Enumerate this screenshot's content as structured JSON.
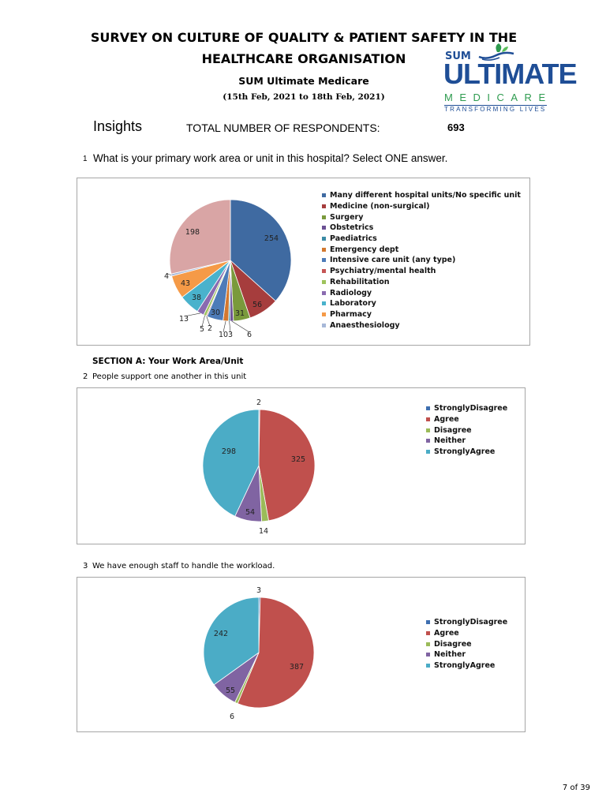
{
  "header": {
    "title_line1": "SURVEY ON CULTURE OF QUALITY & PATIENT SAFETY IN THE",
    "title_line2": "HEALTHCARE ORGANISATION",
    "subtitle": "SUM Ultimate Medicare",
    "dates": "(15th Feb, 2021 to 18th Feb, 2021)"
  },
  "logo": {
    "sum": "SUM",
    "ultimate": "ULTIMATE",
    "medicare": "MEDICARE",
    "tagline": "TRANSFORMING LIVES",
    "colors": {
      "blue": "#1f4e96",
      "green": "#2e9b4f"
    }
  },
  "insights": {
    "label": "Insights",
    "respondents_label": "TOTAL NUMBER OF RESPONDENTS:",
    "respondents_count": "693"
  },
  "q1": {
    "number": "1",
    "text": "What is your primary work area or unit in this hospital? Select ONE answer."
  },
  "section_a": "SECTION A: Your Work Area/Unit",
  "q2": {
    "number": "2",
    "text": "People support one another in this unit"
  },
  "q3": {
    "number": "3",
    "text": "We have enough staff to handle the workload."
  },
  "page": "7 of 39",
  "chart_data": [
    {
      "type": "pie",
      "categories": [
        "Many different hospital units/No specific unit",
        "Medicine (non-surgical)",
        "Surgery",
        "Obstetrics",
        "Paediatrics",
        "Emergency dept",
        "Intensive care unit (any type)",
        "Psychiatry/mental health",
        "Rehabilitation",
        "Radiology",
        "Laboratory",
        "Pharmacy",
        "Anaesthesiology",
        ""
      ],
      "values": [
        254,
        56,
        31,
        6,
        3,
        10,
        30,
        2,
        5,
        13,
        38,
        43,
        4,
        198
      ],
      "labels": [
        "254",
        "56",
        "31",
        "6",
        "3",
        "10",
        "30",
        "2",
        "5",
        "13",
        "38",
        "43",
        "4",
        "198"
      ],
      "legend": [
        "Many different hospital units/No specific unit",
        "Medicine (non-surgical)",
        "Surgery",
        "Obstetrics",
        "Paediatrics",
        "Emergency dept",
        "Intensive care unit (any type)",
        "Psychiatry/mental health",
        "Rehabilitation",
        "Radiology",
        "Laboratory",
        "Pharmacy",
        "Anaesthesiology"
      ],
      "colors": [
        "#3f6aa1",
        "#a63d3d",
        "#7a9a3c",
        "#6b5094",
        "#3b8ba5",
        "#d3782f",
        "#4d7bb8",
        "#c65555",
        "#9ec35c",
        "#8a6bb0",
        "#49b2cc",
        "#f59a47",
        "#a7b8d8",
        "#d9a5a5"
      ],
      "legend_placement": "right"
    },
    {
      "type": "pie",
      "categories": [
        "StronglyDisagree",
        "Agree",
        "Disagree",
        "Neither",
        "StronglyAgree"
      ],
      "values": [
        2,
        325,
        14,
        54,
        298
      ],
      "colors": [
        "#3e6fb0",
        "#c0504d",
        "#9bbb59",
        "#8064a2",
        "#4bacc6"
      ],
      "legend_placement": "right"
    },
    {
      "type": "pie",
      "categories": [
        "StronglyDisagree",
        "Agree",
        "Disagree",
        "Neither",
        "StronglyAgree"
      ],
      "values": [
        3,
        387,
        6,
        55,
        242
      ],
      "colors": [
        "#3e6fb0",
        "#c0504d",
        "#9bbb59",
        "#8064a2",
        "#4bacc6"
      ],
      "legend_placement": "right"
    }
  ]
}
